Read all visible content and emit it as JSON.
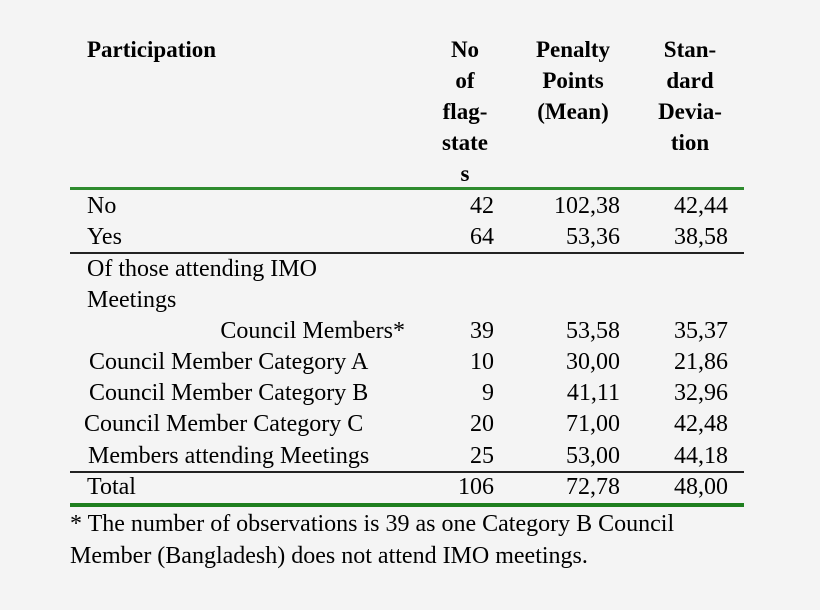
{
  "headers": {
    "participation": "Participation",
    "no_flag_states": "No of flag-state s",
    "penalty": "Penalty Points (Mean)",
    "sd": "Stan- dard Deviation"
  },
  "headers_lines": {
    "no": [
      "No",
      "of",
      "flag-",
      "state",
      "s"
    ],
    "penalty": [
      "Penalty",
      "Points",
      "(Mean)"
    ],
    "sd": [
      "Stan-",
      "dard",
      "Devia-",
      "tion"
    ]
  },
  "rows": [
    {
      "label": "No",
      "n": "42",
      "mean": "102,38",
      "sd": "42,44"
    },
    {
      "label": "Yes",
      "n": "64",
      "mean": "53,36",
      "sd": "38,58"
    },
    {
      "label": "Of those attending IMO",
      "n": "",
      "mean": "",
      "sd": ""
    },
    {
      "label": "Meetings",
      "n": "",
      "mean": "",
      "sd": ""
    },
    {
      "label": "Council Members*",
      "n": "39",
      "mean": "53,58",
      "sd": "35,37"
    },
    {
      "label": "Council Member Category A",
      "n": "10",
      "mean": "30,00",
      "sd": "21,86"
    },
    {
      "label": "Council Member Category B",
      "n": "9",
      "mean": "41,11",
      "sd": "32,96"
    },
    {
      "label": "Council Member  Category C",
      "n": "20",
      "mean": "71,00",
      "sd": "42,48"
    },
    {
      "label": "Members attending Meetings",
      "n": "25",
      "mean": "53,00",
      "sd": "44,18"
    },
    {
      "label": "Total",
      "n": "106",
      "mean": "72,78",
      "sd": "48,00"
    }
  ],
  "footnote": [
    "* The number of observations is 39 as one Category B Council",
    "Member (Bangladesh) does not attend IMO meetings."
  ],
  "colors": {
    "rule_green": "#2e8b2e",
    "rule_dark": "#222222",
    "background": "#f4f4f4"
  }
}
